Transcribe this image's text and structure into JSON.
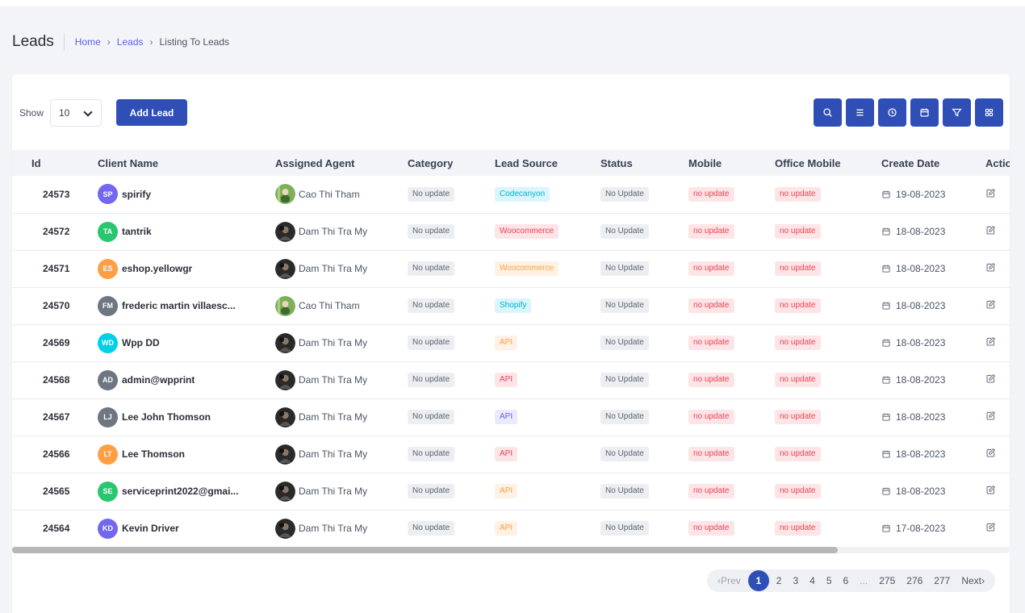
{
  "header": {
    "title": "Leads",
    "breadcrumb": {
      "home": "Home",
      "leads": "Leads",
      "current": "Listing To Leads",
      "separator": "›"
    }
  },
  "toolbar": {
    "show_label": "Show",
    "show_value": "10",
    "add_label": "Add Lead",
    "accent": "#2f4fb6",
    "icons": [
      "search-icon",
      "list-icon",
      "clock-icon",
      "calendar-icon",
      "filter-icon",
      "grid-icon"
    ]
  },
  "table": {
    "columns": [
      "Id",
      "Client Name",
      "Assigned Agent",
      "Category",
      "Lead Source",
      "Status",
      "Mobile",
      "Office Mobile",
      "Create Date",
      "Action"
    ],
    "rows": [
      {
        "id": "24573",
        "initials": "SP",
        "initials_color": "#7367f0",
        "client": "spirify",
        "agent": "Cao Thi Tham",
        "agent_avatar": "green",
        "category": "No update",
        "source": "Codecanyon",
        "source_style": "cyan",
        "status": "No Update",
        "mobile": "no update",
        "office": "no update",
        "date": "19-08-2023"
      },
      {
        "id": "24572",
        "initials": "TA",
        "initials_color": "#28c76f",
        "client": "tantrik",
        "agent": "Dam Thi Tra My",
        "agent_avatar": "dark",
        "category": "No update",
        "source": "Woocommerce",
        "source_style": "red",
        "status": "No Update",
        "mobile": "no update",
        "office": "no update",
        "date": "18-08-2023"
      },
      {
        "id": "24571",
        "initials": "ES",
        "initials_color": "#ff9f43",
        "client": "eshop.yellowgr",
        "agent": "Dam Thi Tra My",
        "agent_avatar": "dark",
        "category": "No update",
        "source": "Woocommerce",
        "source_style": "orange",
        "status": "No Update",
        "mobile": "no update",
        "office": "no update",
        "date": "18-08-2023"
      },
      {
        "id": "24570",
        "initials": "FM",
        "initials_color": "#6e7681",
        "client": "frederic martin villaesc...",
        "agent": "Cao Thi Tham",
        "agent_avatar": "green",
        "category": "No update",
        "source": "Shopify",
        "source_style": "cyan",
        "status": "No Update",
        "mobile": "no update",
        "office": "no update",
        "date": "18-08-2023"
      },
      {
        "id": "24569",
        "initials": "WD",
        "initials_color": "#00cfe8",
        "client": "Wpp DD",
        "agent": "Dam Thi Tra My",
        "agent_avatar": "dark",
        "category": "No update",
        "source": "API",
        "source_style": "orange",
        "status": "No Update",
        "mobile": "no update",
        "office": "no update",
        "date": "18-08-2023"
      },
      {
        "id": "24568",
        "initials": "AD",
        "initials_color": "#6e7681",
        "client": "admin@wpprint",
        "agent": "Dam Thi Tra My",
        "agent_avatar": "dark",
        "category": "No update",
        "source": "API",
        "source_style": "red",
        "status": "No Update",
        "mobile": "no update",
        "office": "no update",
        "date": "18-08-2023"
      },
      {
        "id": "24567",
        "initials": "LJ",
        "initials_color": "#6e7681",
        "client": "Lee John Thomson",
        "agent": "Dam Thi Tra My",
        "agent_avatar": "dark",
        "category": "No update",
        "source": "API",
        "source_style": "purple",
        "status": "No Update",
        "mobile": "no update",
        "office": "no update",
        "date": "18-08-2023"
      },
      {
        "id": "24566",
        "initials": "LT",
        "initials_color": "#ff9f43",
        "client": "Lee Thomson",
        "agent": "Dam Thi Tra My",
        "agent_avatar": "dark",
        "category": "No update",
        "source": "API",
        "source_style": "red",
        "status": "No Update",
        "mobile": "no update",
        "office": "no update",
        "date": "18-08-2023"
      },
      {
        "id": "24565",
        "initials": "SE",
        "initials_color": "#28c76f",
        "client": "serviceprint2022@gmai...",
        "agent": "Dam Thi Tra My",
        "agent_avatar": "dark",
        "category": "No update",
        "source": "API",
        "source_style": "orange",
        "status": "No Update",
        "mobile": "no update",
        "office": "no update",
        "date": "18-08-2023"
      },
      {
        "id": "24564",
        "initials": "KD",
        "initials_color": "#7367f0",
        "client": "Kevin Driver",
        "agent": "Dam Thi Tra My",
        "agent_avatar": "dark",
        "category": "No update",
        "source": "API",
        "source_style": "orange",
        "status": "No Update",
        "mobile": "no update",
        "office": "no update",
        "date": "17-08-2023"
      }
    ]
  },
  "pagination": {
    "prev": "‹Prev",
    "pages": [
      "1",
      "2",
      "3",
      "4",
      "5",
      "6",
      "...",
      "275",
      "276",
      "277"
    ],
    "active": "1",
    "next": "Next›"
  }
}
